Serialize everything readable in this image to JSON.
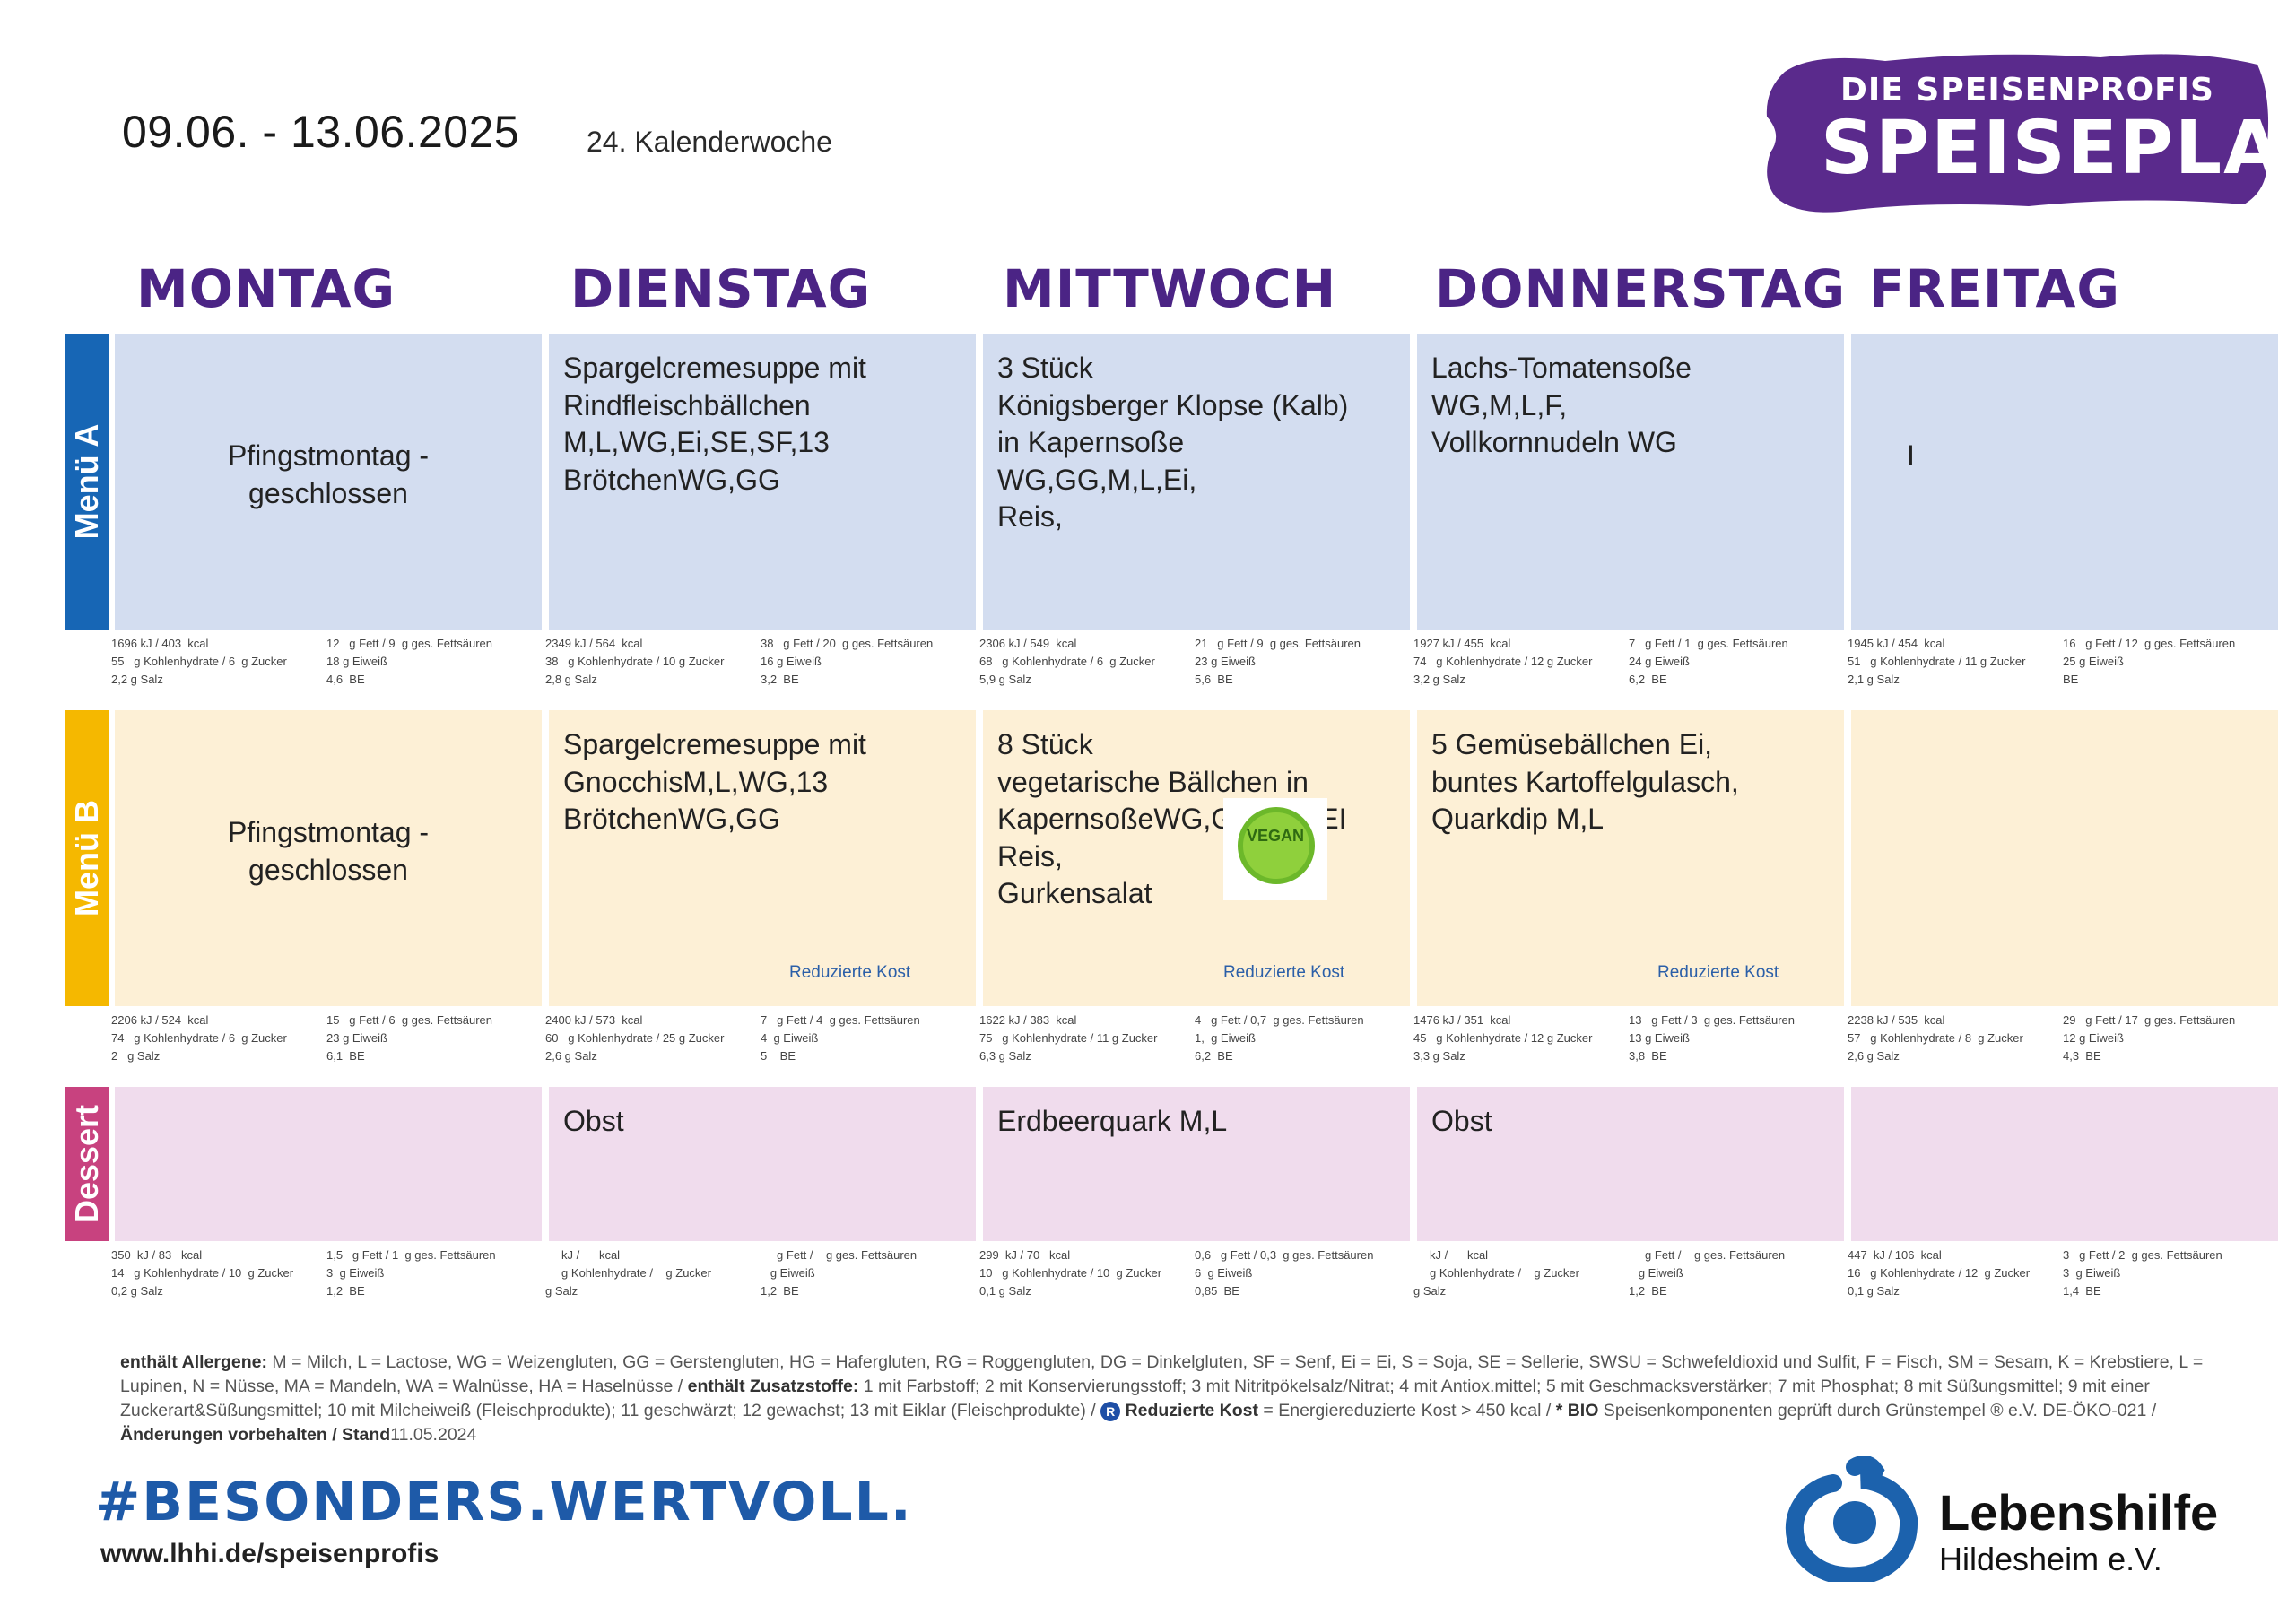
{
  "header": {
    "date_range": "09.06.  - 13.06.2025",
    "calendar_week": "24. Kalenderwoche",
    "brand_sub": "DIE SPEISENPROFIS",
    "brand_main": "SPEISEPLAN"
  },
  "days": [
    "MONTAG",
    "DIENSTAG",
    "MITTWOCH",
    "DONNERSTAG",
    "FREITAG"
  ],
  "menus": [
    {
      "label": "Menü A",
      "color": "#1766b5",
      "cell_bg": "#d3ddf0",
      "items": [
        {
          "text": "Pfingstmontag -\ngeschlossen",
          "tag": ""
        },
        {
          "text": "Spargelcremesuppe mit\nRindfleischbällchen\nM,L,WG,Ei,SE,SF,13\nBrötchenWG,GG",
          "tag": ""
        },
        {
          "text": "3 Stück\nKönigsberger Klopse (Kalb)\nin Kapernsoße\nWG,GG,M,L,Ei,\nReis,",
          "tag": ""
        },
        {
          "text": "Lachs-Tomatensoße\nWG,M,L,F,\nVollkornnudeln WG",
          "tag": ""
        },
        {
          "text": "I",
          "tag": ""
        }
      ],
      "nutrition": [
        {
          "l": [
            "1696 kJ / 403  kcal",
            "55   g Kohlenhydrate / 6  g Zucker",
            "2,2 g Salz"
          ],
          "r": [
            "12   g Fett / 9  g ges. Fettsäuren",
            "18 g Eiweiß",
            "4,6  BE"
          ]
        },
        {
          "l": [
            "2349 kJ / 564  kcal",
            "38   g Kohlenhydrate / 10 g Zucker",
            "2,8 g Salz"
          ],
          "r": [
            "38   g Fett / 20  g ges. Fettsäuren",
            "16 g Eiweiß",
            "3,2  BE"
          ]
        },
        {
          "l": [
            "2306 kJ / 549  kcal",
            "68   g Kohlenhydrate / 6  g Zucker",
            "5,9 g Salz"
          ],
          "r": [
            "21   g Fett / 9  g ges. Fettsäuren",
            "23 g Eiweiß",
            "5,6  BE"
          ]
        },
        {
          "l": [
            "1927 kJ / 455  kcal",
            "74   g Kohlenhydrate / 12 g Zucker",
            "3,2 g Salz"
          ],
          "r": [
            "7   g Fett / 1  g ges. Fettsäuren",
            "24 g Eiweiß",
            "6,2  BE"
          ]
        },
        {
          "l": [
            "1945 kJ / 454  kcal",
            "51   g Kohlenhydrate / 11 g Zucker",
            "2,1 g Salz"
          ],
          "r": [
            "16   g Fett / 12  g ges. Fettsäuren",
            "25 g Eiweiß",
            "BE"
          ]
        }
      ]
    },
    {
      "label": "Menü B",
      "color": "#f5b800",
      "cell_bg": "#fdf0d6",
      "items": [
        {
          "text": "Pfingstmontag -\ngeschlossen",
          "tag": ""
        },
        {
          "text": "Spargelcremesuppe mit\nGnocchisM,L,WG,13\nBrötchenWG,GG",
          "tag": "Reduzierte Kost"
        },
        {
          "text": "8 Stück\nvegetarische Bällchen in\nKapernsoßeWG,GG,M,L,EI\nReis,\nGurkensalat",
          "tag": "Reduzierte Kost"
        },
        {
          "text": "5 Gemüsebällchen Ei,\nbuntes Kartoffelgulasch,\nQuarkdip M,L",
          "tag": "Reduzierte Kost"
        },
        {
          "text": "",
          "tag": ""
        }
      ],
      "nutrition": [
        {
          "l": [
            "2206 kJ / 524  kcal",
            "74   g Kohlenhydrate / 6  g Zucker",
            "2   g Salz"
          ],
          "r": [
            "15   g Fett / 6  g ges. Fettsäuren",
            "23 g Eiweiß",
            "6,1  BE"
          ]
        },
        {
          "l": [
            "2400 kJ / 573  kcal",
            "60   g Kohlenhydrate / 25 g Zucker",
            "2,6 g Salz"
          ],
          "r": [
            "7   g Fett / 4  g ges. Fettsäuren",
            "4  g Eiweiß",
            "5    BE"
          ]
        },
        {
          "l": [
            "1622 kJ / 383  kcal",
            "75   g Kohlenhydrate / 11 g Zucker",
            "6,3 g Salz"
          ],
          "r": [
            "4   g Fett / 0,7  g ges. Fettsäuren",
            "1,  g Eiweiß",
            "6,2  BE"
          ]
        },
        {
          "l": [
            "1476 kJ / 351  kcal",
            "45   g Kohlenhydrate / 12 g Zucker",
            "3,3 g Salz"
          ],
          "r": [
            "13   g Fett / 3  g ges. Fettsäuren",
            "13 g Eiweiß",
            "3,8  BE"
          ]
        },
        {
          "l": [
            "2238 kJ / 535  kcal",
            "57   g Kohlenhydrate / 8  g Zucker",
            "2,6 g Salz"
          ],
          "r": [
            "29   g Fett / 17  g ges. Fettsäuren",
            "12 g Eiweiß",
            "4,3  BE"
          ]
        }
      ]
    },
    {
      "label": "Dessert",
      "color": "#c8427f",
      "cell_bg": "#f0dced",
      "items": [
        {
          "text": "",
          "tag": ""
        },
        {
          "text": "Obst",
          "tag": ""
        },
        {
          "text": "Erdbeerquark M,L",
          "tag": ""
        },
        {
          "text": "Obst",
          "tag": ""
        },
        {
          "text": "",
          "tag": ""
        }
      ],
      "nutrition": [
        {
          "l": [
            "350  kJ / 83   kcal",
            "14   g Kohlenhydrate / 10  g Zucker",
            "0,2 g Salz"
          ],
          "r": [
            "1,5   g Fett / 1  g ges. Fettsäuren",
            "3  g Eiweiß",
            "1,2  BE"
          ]
        },
        {
          "l": [
            "     kJ /      kcal",
            "     g Kohlenhydrate /    g Zucker",
            "g Salz"
          ],
          "r": [
            "     g Fett /    g ges. Fettsäuren",
            "   g Eiweiß",
            "1,2  BE"
          ]
        },
        {
          "l": [
            "299  kJ / 70   kcal",
            "10   g Kohlenhydrate / 10  g Zucker",
            "0,1 g Salz"
          ],
          "r": [
            "0,6   g Fett / 0,3  g ges. Fettsäuren",
            "6  g Eiweiß",
            "0,85  BE"
          ]
        },
        {
          "l": [
            "     kJ /      kcal",
            "     g Kohlenhydrate /    g Zucker",
            "g Salz"
          ],
          "r": [
            "     g Fett /    g ges. Fettsäuren",
            "   g Eiweiß",
            "1,2  BE"
          ]
        },
        {
          "l": [
            "447  kJ / 106  kcal",
            "16   g Kohlenhydrate / 12  g Zucker",
            "0,1 g Salz"
          ],
          "r": [
            "3   g Fett / 2  g ges. Fettsäuren",
            "3  g Eiweiß",
            "1,4  BE"
          ]
        }
      ]
    }
  ],
  "vegan_badge": "VEGAN",
  "legend": {
    "allergen_title": "enthält Allergene:",
    "allergen_text": " M = Milch, L = Lactose, WG = Weizengluten, GG = Gerstengluten, HG = Hafergluten, RG = Roggengluten, DG = Dinkelgluten, SF = Senf, Ei = Ei, S = Soja, SE = Sellerie, SWSU = Schwefeldioxid und Sulfit, F = Fisch, SM = Sesam, K = Krebstiere, L = Lupinen, N = Nüsse, MA = Mandeln, WA = Walnüsse, HA =  Haselnüsse / ",
    "additive_title": "enthält Zusatzstoffe:",
    "additive_text": " 1 mit Farbstoff; 2 mit Konservierungsstoff; 3 mit Nitritpökelsalz/Nitrat; 4 mit Antiox.mittel; 5 mit Geschmacksverstärker; 7 mit Phosphat; 8 mit Süßungsmittel; 9 mit einer Zuckerart&Süßungsmittel; 10 mit Milcheiweiß (Fleischprodukte); 11 geschwärzt; 12 gewachst; 13 mit Eiklar (Fleischprodukte) / ",
    "r_symbol": "R",
    "reduced_title": "Reduzierte Kost",
    "reduced_text": " = Energiereduzierte Kost > 450 kcal / ",
    "bio_title": "* BIO",
    "bio_text": " Speisenkomponenten geprüft durch Grünstempel ® e.V. DE-ÖKO-021 / ",
    "changes_title": "Änderungen vorbehalten / Stand",
    "changes_date": "11.05.2024"
  },
  "footer": {
    "tagline": "#BESONDERS.WERTVOLL.",
    "url": "www.lhhi.de/speisenprofis",
    "org_name": "Lebenshilfe",
    "org_city": "Hildesheim e.V."
  },
  "colors": {
    "brand_purple": "#4b2485",
    "brand_blue": "#1e5aa8"
  }
}
